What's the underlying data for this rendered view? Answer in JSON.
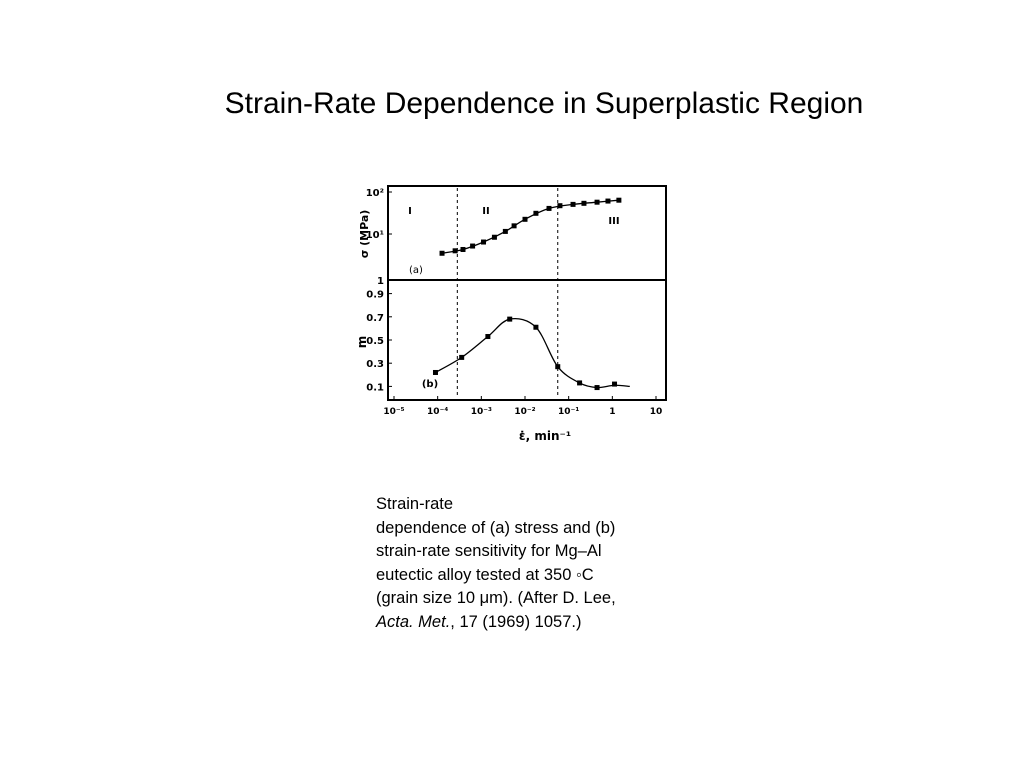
{
  "slide": {
    "title": "Strain-Rate Dependence in Superplastic Region"
  },
  "caption": {
    "line1": "Strain-rate",
    "line2": "dependence of (a) stress and (b)",
    "line3": "strain-rate sensitivity for Mg–Al",
    "line4": "eutectic alloy tested at 350 ◦C",
    "line5": "(grain size 10 μm). (After D. Lee,",
    "journal": "Acta. Met.",
    "citation": ", 17 (1969) 1057.)"
  },
  "chart_data": [
    {
      "id": "a",
      "type": "line",
      "panel_label": "(a)",
      "ylabel": "σ (MPa)",
      "yscale": "log",
      "ylim": [
        1,
        100
      ],
      "y_ticks": [
        "1",
        "10¹",
        "10²"
      ],
      "xscale": "log",
      "xlim_log10": [
        -5,
        1
      ],
      "region_labels": [
        "I",
        "II",
        "III"
      ],
      "region_boundaries_log10": [
        -3.55,
        -1.25
      ],
      "x_log10": [
        -3.9,
        -3.6,
        -3.42,
        -3.2,
        -2.95,
        -2.7,
        -2.45,
        -2.25,
        -2.0,
        -1.75,
        -1.45,
        -1.2,
        -0.9,
        -0.65,
        -0.35,
        -0.1,
        0.15
      ],
      "y": [
        3.3,
        3.8,
        4.1,
        5.0,
        6.3,
        8.3,
        11.6,
        16.0,
        23.3,
        32.9,
        43.6,
        51.0,
        55.0,
        58.5,
        62.4,
        66.6,
        70.0
      ],
      "line_x_log10": [
        -3.9,
        -3.42,
        -2.95,
        -2.45,
        -2.0,
        -1.45,
        -0.9,
        -0.35,
        0.15
      ],
      "line_y": [
        3.3,
        4.1,
        6.3,
        11.6,
        23.3,
        43.6,
        55.0,
        62.4,
        70.0
      ]
    },
    {
      "id": "b",
      "type": "line",
      "panel_label": "(b)",
      "ylabel": "m",
      "ylim": [
        0,
        1.0
      ],
      "y_ticks": [
        "0.1",
        "0.3",
        "0.5",
        "0.7",
        "0.9"
      ],
      "xscale": "log",
      "xlim_log10": [
        -5,
        1
      ],
      "x_tick_labels": [
        "10⁻⁵",
        "10⁻⁴",
        "10⁻³",
        "10⁻²",
        "10⁻¹",
        "1",
        "10"
      ],
      "xlabel": "ε̇, min⁻¹",
      "region_boundaries_log10": [
        -3.55,
        -1.25
      ],
      "x_log10": [
        -4.05,
        -3.45,
        -2.85,
        -2.35,
        -1.75,
        -1.25,
        -0.75,
        -0.35,
        0.05
      ],
      "y": [
        0.22,
        0.35,
        0.53,
        0.68,
        0.61,
        0.27,
        0.13,
        0.09,
        0.12
      ],
      "line_x_log10": [
        -4.05,
        -3.45,
        -2.85,
        -2.35,
        -1.75,
        -1.25,
        -0.75,
        -0.35,
        0.05,
        0.4
      ],
      "line_y": [
        0.22,
        0.35,
        0.53,
        0.68,
        0.61,
        0.27,
        0.13,
        0.09,
        0.11,
        0.1
      ]
    }
  ]
}
